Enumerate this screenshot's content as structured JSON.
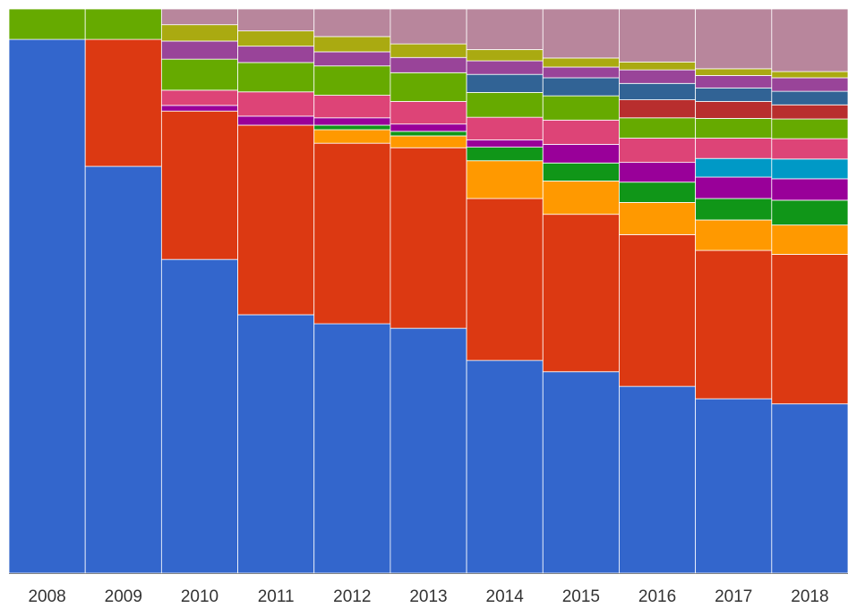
{
  "chart_data": {
    "type": "stacked_bar_100",
    "categories": [
      "2008",
      "2009",
      "2010",
      "2011",
      "2012",
      "2013",
      "2014",
      "2015",
      "2016",
      "2017",
      "2018"
    ],
    "ylim": [
      0,
      100
    ],
    "series": [
      {
        "color": "#3366cc",
        "values": [
          94.6,
          72.1,
          55.6,
          45.8,
          44.2,
          43.4,
          37.7,
          35.7,
          33.1,
          30.9,
          30.0
        ]
      },
      {
        "color": "#dc3912",
        "values": [
          0,
          22.5,
          26.3,
          33.6,
          32.0,
          32.0,
          28.7,
          27.9,
          26.9,
          26.3,
          26.5
        ]
      },
      {
        "color": "#ff9900",
        "values": [
          0,
          0,
          0,
          0,
          2.4,
          2.1,
          6.7,
          5.9,
          5.7,
          5.4,
          5.2
        ]
      },
      {
        "color": "#109618",
        "values": [
          0,
          0,
          0,
          0,
          0.8,
          0.8,
          2.4,
          3.2,
          3.6,
          3.8,
          4.4
        ]
      },
      {
        "color": "#990099",
        "values": [
          0,
          0,
          1.0,
          1.6,
          1.3,
          1.3,
          1.3,
          3.3,
          3.5,
          3.8,
          3.8
        ]
      },
      {
        "color": "#0099c6",
        "values": [
          0,
          0,
          0,
          0,
          0,
          0,
          0,
          0,
          0,
          3.3,
          3.5
        ]
      },
      {
        "color": "#dd4477",
        "values": [
          0,
          0,
          2.7,
          4.3,
          4.0,
          4.0,
          4.0,
          4.3,
          4.3,
          3.6,
          3.6
        ]
      },
      {
        "color": "#66aa00",
        "values": [
          5.4,
          5.4,
          5.5,
          5.2,
          5.2,
          5.1,
          4.4,
          4.3,
          3.6,
          3.5,
          3.5
        ]
      },
      {
        "color": "#b82e2e",
        "values": [
          0,
          0,
          0,
          0,
          0,
          0,
          0,
          0,
          3.2,
          3.0,
          2.5
        ]
      },
      {
        "color": "#316395",
        "values": [
          0,
          0,
          0,
          0,
          0,
          0,
          3.2,
          3.2,
          2.9,
          2.4,
          2.4
        ]
      },
      {
        "color": "#994499",
        "values": [
          0,
          0,
          3.2,
          2.9,
          2.5,
          2.7,
          2.4,
          1.9,
          2.4,
          2.2,
          2.4
        ]
      },
      {
        "color": "#aaaa11",
        "values": [
          0,
          0,
          2.9,
          2.7,
          2.7,
          2.4,
          2.0,
          1.6,
          1.4,
          1.2,
          1.1
        ]
      },
      {
        "color": "#b8869c",
        "values": [
          0,
          0,
          2.8,
          3.9,
          4.9,
          6.2,
          7.2,
          8.7,
          9.4,
          10.6,
          11.1
        ]
      }
    ]
  }
}
